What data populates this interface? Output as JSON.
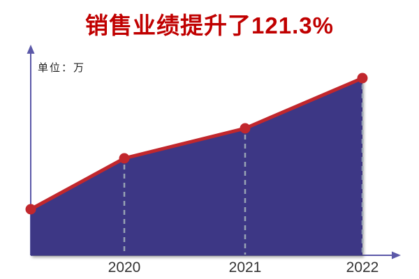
{
  "title": {
    "text": "销售业绩提升了121.3%",
    "color": "#C00000"
  },
  "unit_label": "单位：万",
  "chart_data": {
    "type": "area",
    "title": "销售业绩提升了121.3%",
    "ylabel": "单位：万",
    "xlabel": "",
    "x_tick_labels": [
      "2020",
      "2021",
      "2022"
    ],
    "y_axis_ticks": [],
    "grid": false,
    "legend": false,
    "series": [
      {
        "name": "销售业绩",
        "points": [
          {
            "label": "",
            "value": 66
          },
          {
            "label": "2020",
            "value": 139
          },
          {
            "label": "2021",
            "value": 182
          },
          {
            "label": "2022",
            "value": 254
          }
        ]
      }
    ],
    "highlight_percent": "121.3%",
    "colors": {
      "area_fill": "#3D3785",
      "line": "#C1272D",
      "marker": "#C1272D",
      "axis": "#5B58A8",
      "dashed_guide": "#97A3B4",
      "title": "#C00000",
      "x_label_text": "#333333"
    }
  }
}
